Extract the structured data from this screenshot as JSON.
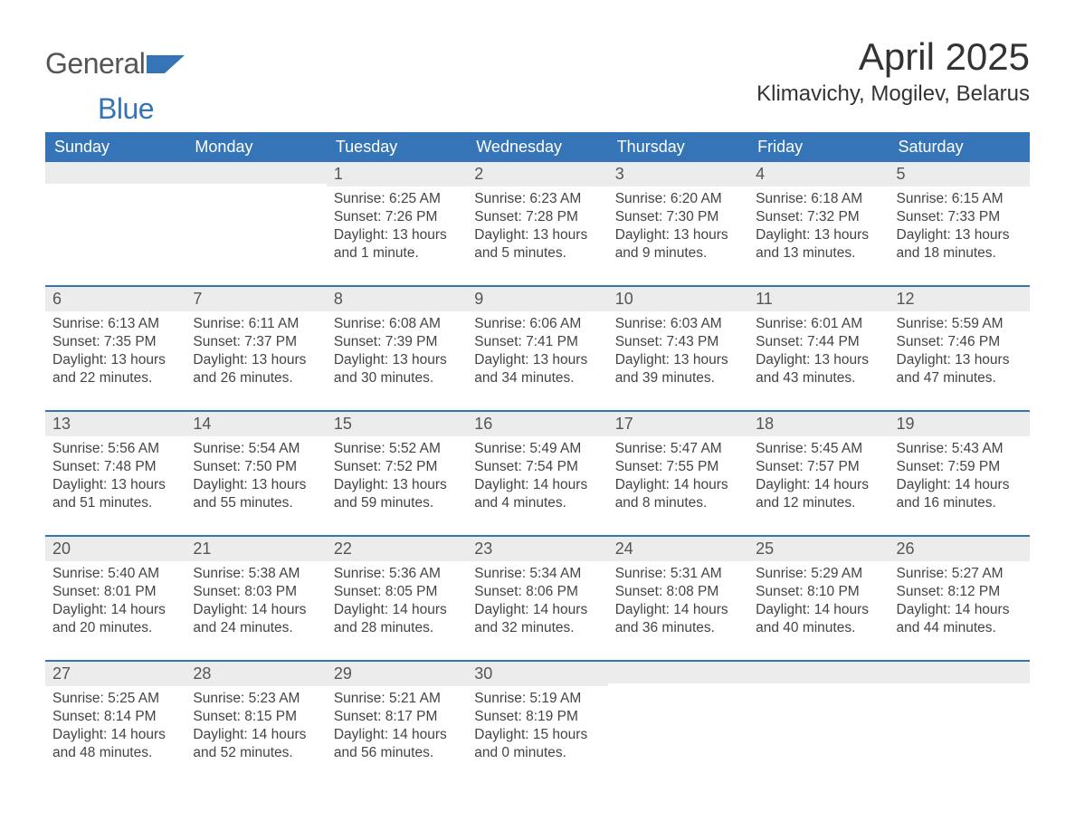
{
  "colors": {
    "brand_blue": "#3575b7",
    "dark_gray": "#555555",
    "text_gray": "#444444",
    "band_gray": "#ececec",
    "bg": "#ffffff",
    "title_color": "#333333"
  },
  "logo": {
    "word1": "General",
    "word2": "Blue"
  },
  "title": "April 2025",
  "location": "Klimavichy, Mogilev, Belarus",
  "days_of_week": [
    "Sunday",
    "Monday",
    "Tuesday",
    "Wednesday",
    "Thursday",
    "Friday",
    "Saturday"
  ],
  "weeks": [
    [
      {
        "num": "",
        "sunrise": "",
        "sunset": "",
        "daylight": ""
      },
      {
        "num": "",
        "sunrise": "",
        "sunset": "",
        "daylight": ""
      },
      {
        "num": "1",
        "sunrise": "Sunrise: 6:25 AM",
        "sunset": "Sunset: 7:26 PM",
        "daylight": "Daylight: 13 hours and 1 minute."
      },
      {
        "num": "2",
        "sunrise": "Sunrise: 6:23 AM",
        "sunset": "Sunset: 7:28 PM",
        "daylight": "Daylight: 13 hours and 5 minutes."
      },
      {
        "num": "3",
        "sunrise": "Sunrise: 6:20 AM",
        "sunset": "Sunset: 7:30 PM",
        "daylight": "Daylight: 13 hours and 9 minutes."
      },
      {
        "num": "4",
        "sunrise": "Sunrise: 6:18 AM",
        "sunset": "Sunset: 7:32 PM",
        "daylight": "Daylight: 13 hours and 13 minutes."
      },
      {
        "num": "5",
        "sunrise": "Sunrise: 6:15 AM",
        "sunset": "Sunset: 7:33 PM",
        "daylight": "Daylight: 13 hours and 18 minutes."
      }
    ],
    [
      {
        "num": "6",
        "sunrise": "Sunrise: 6:13 AM",
        "sunset": "Sunset: 7:35 PM",
        "daylight": "Daylight: 13 hours and 22 minutes."
      },
      {
        "num": "7",
        "sunrise": "Sunrise: 6:11 AM",
        "sunset": "Sunset: 7:37 PM",
        "daylight": "Daylight: 13 hours and 26 minutes."
      },
      {
        "num": "8",
        "sunrise": "Sunrise: 6:08 AM",
        "sunset": "Sunset: 7:39 PM",
        "daylight": "Daylight: 13 hours and 30 minutes."
      },
      {
        "num": "9",
        "sunrise": "Sunrise: 6:06 AM",
        "sunset": "Sunset: 7:41 PM",
        "daylight": "Daylight: 13 hours and 34 minutes."
      },
      {
        "num": "10",
        "sunrise": "Sunrise: 6:03 AM",
        "sunset": "Sunset: 7:43 PM",
        "daylight": "Daylight: 13 hours and 39 minutes."
      },
      {
        "num": "11",
        "sunrise": "Sunrise: 6:01 AM",
        "sunset": "Sunset: 7:44 PM",
        "daylight": "Daylight: 13 hours and 43 minutes."
      },
      {
        "num": "12",
        "sunrise": "Sunrise: 5:59 AM",
        "sunset": "Sunset: 7:46 PM",
        "daylight": "Daylight: 13 hours and 47 minutes."
      }
    ],
    [
      {
        "num": "13",
        "sunrise": "Sunrise: 5:56 AM",
        "sunset": "Sunset: 7:48 PM",
        "daylight": "Daylight: 13 hours and 51 minutes."
      },
      {
        "num": "14",
        "sunrise": "Sunrise: 5:54 AM",
        "sunset": "Sunset: 7:50 PM",
        "daylight": "Daylight: 13 hours and 55 minutes."
      },
      {
        "num": "15",
        "sunrise": "Sunrise: 5:52 AM",
        "sunset": "Sunset: 7:52 PM",
        "daylight": "Daylight: 13 hours and 59 minutes."
      },
      {
        "num": "16",
        "sunrise": "Sunrise: 5:49 AM",
        "sunset": "Sunset: 7:54 PM",
        "daylight": "Daylight: 14 hours and 4 minutes."
      },
      {
        "num": "17",
        "sunrise": "Sunrise: 5:47 AM",
        "sunset": "Sunset: 7:55 PM",
        "daylight": "Daylight: 14 hours and 8 minutes."
      },
      {
        "num": "18",
        "sunrise": "Sunrise: 5:45 AM",
        "sunset": "Sunset: 7:57 PM",
        "daylight": "Daylight: 14 hours and 12 minutes."
      },
      {
        "num": "19",
        "sunrise": "Sunrise: 5:43 AM",
        "sunset": "Sunset: 7:59 PM",
        "daylight": "Daylight: 14 hours and 16 minutes."
      }
    ],
    [
      {
        "num": "20",
        "sunrise": "Sunrise: 5:40 AM",
        "sunset": "Sunset: 8:01 PM",
        "daylight": "Daylight: 14 hours and 20 minutes."
      },
      {
        "num": "21",
        "sunrise": "Sunrise: 5:38 AM",
        "sunset": "Sunset: 8:03 PM",
        "daylight": "Daylight: 14 hours and 24 minutes."
      },
      {
        "num": "22",
        "sunrise": "Sunrise: 5:36 AM",
        "sunset": "Sunset: 8:05 PM",
        "daylight": "Daylight: 14 hours and 28 minutes."
      },
      {
        "num": "23",
        "sunrise": "Sunrise: 5:34 AM",
        "sunset": "Sunset: 8:06 PM",
        "daylight": "Daylight: 14 hours and 32 minutes."
      },
      {
        "num": "24",
        "sunrise": "Sunrise: 5:31 AM",
        "sunset": "Sunset: 8:08 PM",
        "daylight": "Daylight: 14 hours and 36 minutes."
      },
      {
        "num": "25",
        "sunrise": "Sunrise: 5:29 AM",
        "sunset": "Sunset: 8:10 PM",
        "daylight": "Daylight: 14 hours and 40 minutes."
      },
      {
        "num": "26",
        "sunrise": "Sunrise: 5:27 AM",
        "sunset": "Sunset: 8:12 PM",
        "daylight": "Daylight: 14 hours and 44 minutes."
      }
    ],
    [
      {
        "num": "27",
        "sunrise": "Sunrise: 5:25 AM",
        "sunset": "Sunset: 8:14 PM",
        "daylight": "Daylight: 14 hours and 48 minutes."
      },
      {
        "num": "28",
        "sunrise": "Sunrise: 5:23 AM",
        "sunset": "Sunset: 8:15 PM",
        "daylight": "Daylight: 14 hours and 52 minutes."
      },
      {
        "num": "29",
        "sunrise": "Sunrise: 5:21 AM",
        "sunset": "Sunset: 8:17 PM",
        "daylight": "Daylight: 14 hours and 56 minutes."
      },
      {
        "num": "30",
        "sunrise": "Sunrise: 5:19 AM",
        "sunset": "Sunset: 8:19 PM",
        "daylight": "Daylight: 15 hours and 0 minutes."
      },
      {
        "num": "",
        "sunrise": "",
        "sunset": "",
        "daylight": ""
      },
      {
        "num": "",
        "sunrise": "",
        "sunset": "",
        "daylight": ""
      },
      {
        "num": "",
        "sunrise": "",
        "sunset": "",
        "daylight": ""
      }
    ]
  ]
}
